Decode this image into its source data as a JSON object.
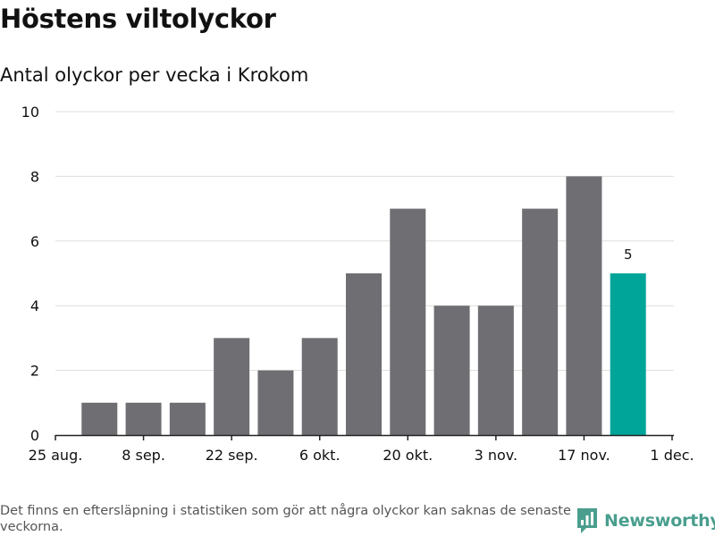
{
  "colors": {
    "bar": "#6f6e73",
    "highlight": "#00a59a",
    "grid": "#dddddd",
    "axis": "#222222",
    "brand": "#4a9e8e"
  },
  "chart_data": {
    "type": "bar",
    "title": "Höstens viltolyckor",
    "subtitle": "Antal olyckor per vecka i Krokom",
    "xlabel": "",
    "ylabel": "",
    "ylim": [
      0,
      10
    ],
    "yticks": [
      0,
      2,
      4,
      6,
      8,
      10
    ],
    "grid": true,
    "xlim": [
      "2025-08-25",
      "2025-12-01"
    ],
    "xticks": [
      {
        "date": "2025-08-25",
        "label": "25 aug."
      },
      {
        "date": "2025-09-08",
        "label": "8 sep."
      },
      {
        "date": "2025-09-22",
        "label": "22 sep."
      },
      {
        "date": "2025-10-06",
        "label": "6 okt."
      },
      {
        "date": "2025-10-20",
        "label": "20 okt."
      },
      {
        "date": "2025-11-03",
        "label": "3 nov."
      },
      {
        "date": "2025-11-17",
        "label": "17 nov."
      },
      {
        "date": "2025-12-01",
        "label": "1 dec."
      }
    ],
    "x": [
      "2025-09-01",
      "2025-09-08",
      "2025-09-15",
      "2025-09-22",
      "2025-09-29",
      "2025-10-06",
      "2025-10-13",
      "2025-10-20",
      "2025-10-27",
      "2025-11-03",
      "2025-11-10",
      "2025-11-17",
      "2025-11-24"
    ],
    "values": [
      1,
      1,
      1,
      3,
      2,
      3,
      5,
      7,
      4,
      4,
      7,
      8,
      5
    ],
    "highlight_index": 12,
    "data_labels": [
      {
        "index": 12,
        "text": "5"
      }
    ]
  },
  "footer": {
    "note": "Det finns en eftersläpning i statistiken som gör att några olyckor kan saknas de senaste veckorna.",
    "brand": "Newsworthy",
    "brand_icon": "newsworthy-logo-icon"
  }
}
